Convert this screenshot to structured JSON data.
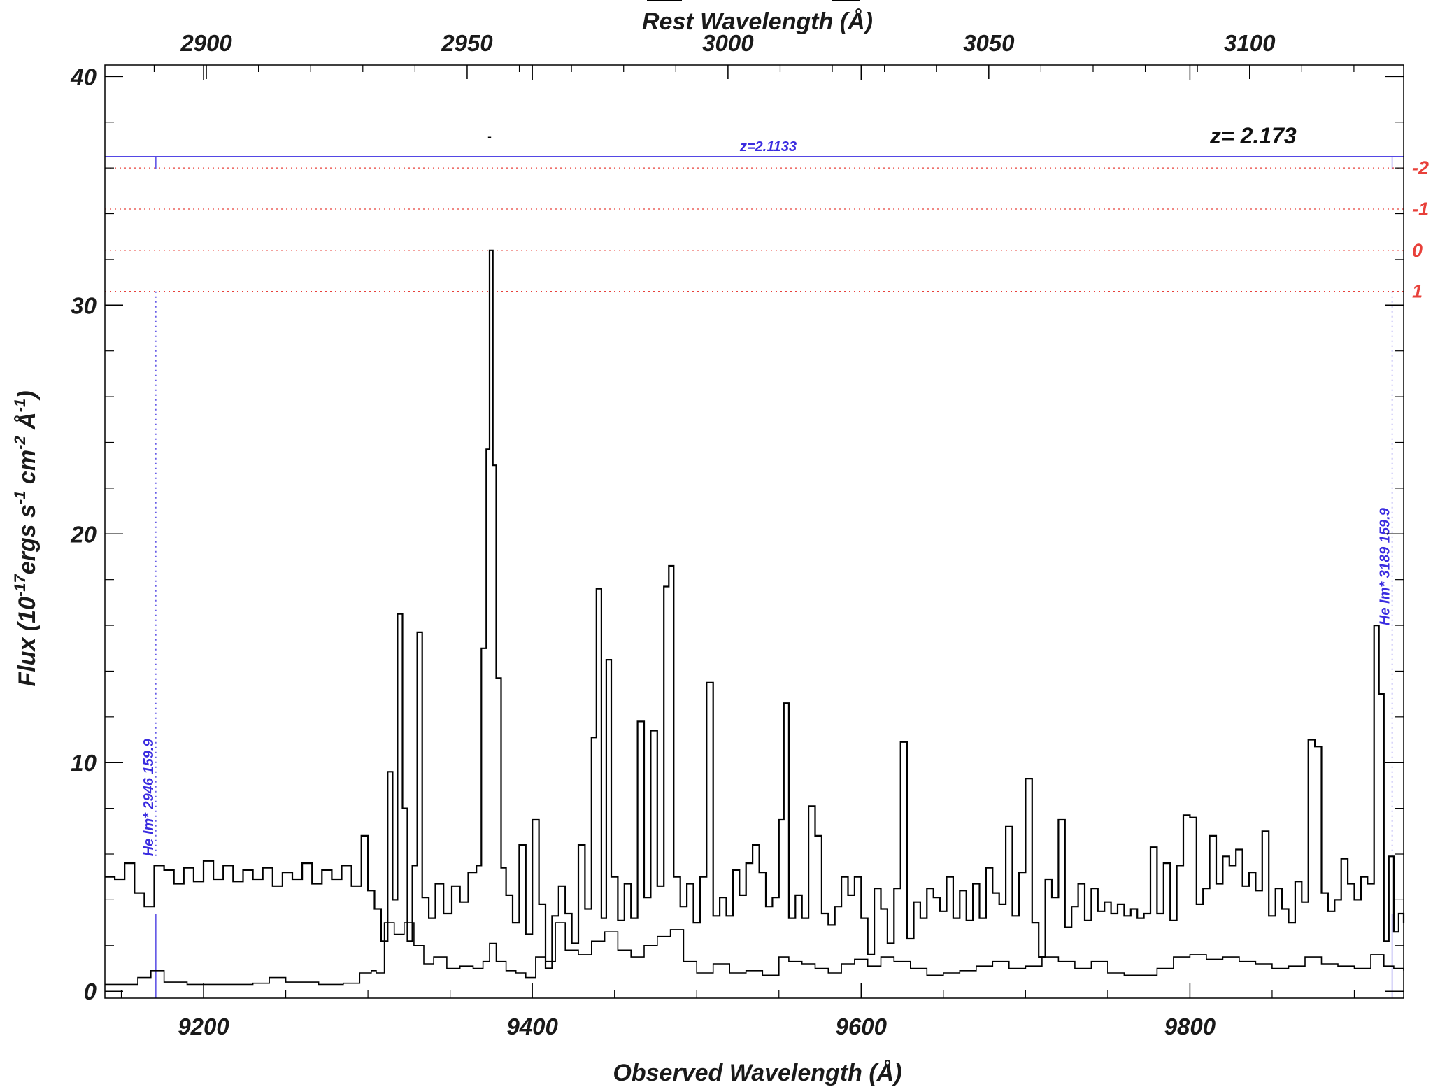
{
  "chart_data": {
    "type": "line",
    "title": "",
    "xlabel": "Observed Wavelength (Å)",
    "xlabel_top": "Rest Wavelength (Å)",
    "ylabel": "Flux (10^-17 ergs s^-1 cm^-2 Å^-1)",
    "ylabel_parts": {
      "pre": "Flux (10",
      "exp1": "-17",
      "mid1": "ergs s",
      "exp2": "-1",
      "mid2": " cm",
      "exp3": "-2",
      "mid3": " Å",
      "exp4": "-1",
      "post": ")"
    },
    "xlim": [
      9140,
      9930
    ],
    "ylim": [
      -0.3,
      40.5
    ],
    "x_ticks": [
      9200,
      9400,
      9600,
      9800
    ],
    "x_ticks_labels": [
      "9200",
      "9400",
      "9600",
      "9800"
    ],
    "top_ticks": [
      2900,
      2950,
      3000,
      3050,
      3100
    ],
    "top_ticks_labels": [
      "2900",
      "2950",
      "3000",
      "3050",
      "3100"
    ],
    "rest_redshift": 2.173,
    "y_ticks": [
      0,
      10,
      20,
      30,
      40
    ],
    "y_ticks_labels": [
      "0",
      "10",
      "20",
      "30",
      "40"
    ],
    "grid": false,
    "series": [
      {
        "role": "flux",
        "color": "#000000",
        "points": [
          [
            9140,
            5.0
          ],
          [
            9146,
            4.9
          ],
          [
            9152,
            5.6
          ],
          [
            9158,
            4.3
          ],
          [
            9164,
            3.7
          ],
          [
            9170,
            5.5
          ],
          [
            9176,
            5.3
          ],
          [
            9182,
            4.7
          ],
          [
            9188,
            5.4
          ],
          [
            9194,
            4.8
          ],
          [
            9200,
            5.7
          ],
          [
            9206,
            4.9
          ],
          [
            9212,
            5.5
          ],
          [
            9218,
            4.8
          ],
          [
            9224,
            5.3
          ],
          [
            9230,
            4.9
          ],
          [
            9236,
            5.4
          ],
          [
            9242,
            4.6
          ],
          [
            9248,
            5.2
          ],
          [
            9254,
            4.9
          ],
          [
            9260,
            5.6
          ],
          [
            9266,
            4.7
          ],
          [
            9272,
            5.3
          ],
          [
            9278,
            4.9
          ],
          [
            9284,
            5.5
          ],
          [
            9290,
            4.6
          ],
          [
            9296,
            6.8
          ],
          [
            9300,
            4.4
          ],
          [
            9304,
            3.6
          ],
          [
            9308,
            2.2
          ],
          [
            9312,
            9.6
          ],
          [
            9315,
            4.0
          ],
          [
            9318,
            16.5
          ],
          [
            9321,
            8.0
          ],
          [
            9324,
            2.2
          ],
          [
            9327,
            5.5
          ],
          [
            9330,
            15.7
          ],
          [
            9333,
            4.1
          ],
          [
            9337,
            3.2
          ],
          [
            9341,
            4.7
          ],
          [
            9346,
            3.4
          ],
          [
            9351,
            4.6
          ],
          [
            9356,
            3.9
          ],
          [
            9361,
            5.2
          ],
          [
            9366,
            5.5
          ],
          [
            9369,
            15.0
          ],
          [
            9372,
            23.7
          ],
          [
            9374,
            32.4
          ],
          [
            9376,
            23.0
          ],
          [
            9378,
            13.7
          ],
          [
            9381,
            5.4
          ],
          [
            9384,
            4.2
          ],
          [
            9388,
            3.0
          ],
          [
            9392,
            6.4
          ],
          [
            9396,
            2.5
          ],
          [
            9400,
            7.5
          ],
          [
            9404,
            3.8
          ],
          [
            9408,
            1.0
          ],
          [
            9412,
            3.3
          ],
          [
            9416,
            4.6
          ],
          [
            9420,
            3.4
          ],
          [
            9424,
            2.1
          ],
          [
            9428,
            6.4
          ],
          [
            9432,
            3.6
          ],
          [
            9436,
            11.1
          ],
          [
            9439,
            17.6
          ],
          [
            9442,
            3.2
          ],
          [
            9445,
            14.5
          ],
          [
            9448,
            5.0
          ],
          [
            9452,
            3.1
          ],
          [
            9456,
            4.7
          ],
          [
            9460,
            3.2
          ],
          [
            9464,
            11.8
          ],
          [
            9468,
            4.1
          ],
          [
            9472,
            11.4
          ],
          [
            9476,
            4.6
          ],
          [
            9480,
            17.7
          ],
          [
            9483,
            18.6
          ],
          [
            9486,
            5.0
          ],
          [
            9490,
            3.7
          ],
          [
            9494,
            4.7
          ],
          [
            9498,
            3.0
          ],
          [
            9502,
            5.0
          ],
          [
            9506,
            13.5
          ],
          [
            9510,
            3.3
          ],
          [
            9514,
            4.1
          ],
          [
            9518,
            3.3
          ],
          [
            9522,
            5.3
          ],
          [
            9526,
            4.2
          ],
          [
            9530,
            5.6
          ],
          [
            9534,
            6.4
          ],
          [
            9538,
            5.2
          ],
          [
            9542,
            3.7
          ],
          [
            9546,
            4.1
          ],
          [
            9550,
            7.5
          ],
          [
            9553,
            12.6
          ],
          [
            9556,
            3.2
          ],
          [
            9560,
            4.2
          ],
          [
            9564,
            3.2
          ],
          [
            9568,
            8.1
          ],
          [
            9572,
            6.8
          ],
          [
            9576,
            3.4
          ],
          [
            9580,
            2.9
          ],
          [
            9584,
            3.7
          ],
          [
            9588,
            5.0
          ],
          [
            9592,
            4.2
          ],
          [
            9596,
            5.0
          ],
          [
            9600,
            3.2
          ],
          [
            9604,
            1.6
          ],
          [
            9608,
            4.5
          ],
          [
            9612,
            3.6
          ],
          [
            9616,
            2.1
          ],
          [
            9620,
            4.5
          ],
          [
            9624,
            10.9
          ],
          [
            9628,
            2.3
          ],
          [
            9632,
            3.9
          ],
          [
            9636,
            3.2
          ],
          [
            9640,
            4.5
          ],
          [
            9644,
            4.1
          ],
          [
            9648,
            3.5
          ],
          [
            9652,
            5.0
          ],
          [
            9656,
            3.2
          ],
          [
            9660,
            4.4
          ],
          [
            9664,
            3.1
          ],
          [
            9668,
            4.7
          ],
          [
            9672,
            3.2
          ],
          [
            9676,
            5.4
          ],
          [
            9680,
            4.3
          ],
          [
            9684,
            3.8
          ],
          [
            9688,
            7.2
          ],
          [
            9692,
            3.3
          ],
          [
            9696,
            5.2
          ],
          [
            9700,
            9.3
          ],
          [
            9704,
            3.0
          ],
          [
            9708,
            1.5
          ],
          [
            9712,
            4.9
          ],
          [
            9716,
            4.1
          ],
          [
            9720,
            7.5
          ],
          [
            9724,
            2.8
          ],
          [
            9728,
            3.7
          ],
          [
            9732,
            4.7
          ],
          [
            9736,
            3.1
          ],
          [
            9740,
            4.5
          ],
          [
            9744,
            3.5
          ],
          [
            9748,
            3.9
          ],
          [
            9752,
            3.4
          ],
          [
            9756,
            3.8
          ],
          [
            9760,
            3.3
          ],
          [
            9764,
            3.6
          ],
          [
            9768,
            3.2
          ],
          [
            9772,
            3.4
          ],
          [
            9776,
            6.3
          ],
          [
            9780,
            3.4
          ],
          [
            9784,
            5.6
          ],
          [
            9788,
            3.1
          ],
          [
            9792,
            5.5
          ],
          [
            9796,
            7.7
          ],
          [
            9800,
            7.6
          ],
          [
            9804,
            3.8
          ],
          [
            9808,
            4.5
          ],
          [
            9812,
            6.8
          ],
          [
            9816,
            4.7
          ],
          [
            9820,
            5.9
          ],
          [
            9824,
            5.5
          ],
          [
            9828,
            6.2
          ],
          [
            9832,
            4.6
          ],
          [
            9836,
            5.2
          ],
          [
            9840,
            4.4
          ],
          [
            9844,
            7.0
          ],
          [
            9848,
            3.3
          ],
          [
            9852,
            4.5
          ],
          [
            9856,
            3.6
          ],
          [
            9860,
            3.0
          ],
          [
            9864,
            4.8
          ],
          [
            9868,
            3.9
          ],
          [
            9872,
            11.0
          ],
          [
            9876,
            10.7
          ],
          [
            9880,
            4.3
          ],
          [
            9884,
            3.5
          ],
          [
            9888,
            4.0
          ],
          [
            9892,
            5.8
          ],
          [
            9896,
            4.7
          ],
          [
            9900,
            4.0
          ],
          [
            9904,
            5.0
          ],
          [
            9908,
            4.7
          ],
          [
            9912,
            16.0
          ],
          [
            9915,
            13.0
          ],
          [
            9918,
            2.2
          ],
          [
            9921,
            5.9
          ],
          [
            9924,
            2.6
          ],
          [
            9927,
            3.4
          ],
          [
            9930,
            3.0
          ]
        ]
      },
      {
        "role": "error",
        "color": "#000000",
        "points": [
          [
            9140,
            0.3
          ],
          [
            9150,
            0.3
          ],
          [
            9160,
            0.6
          ],
          [
            9168,
            0.9
          ],
          [
            9176,
            0.4
          ],
          [
            9190,
            0.3
          ],
          [
            9210,
            0.3
          ],
          [
            9230,
            0.35
          ],
          [
            9240,
            0.6
          ],
          [
            9250,
            0.4
          ],
          [
            9270,
            0.3
          ],
          [
            9285,
            0.35
          ],
          [
            9295,
            0.8
          ],
          [
            9302,
            0.9
          ],
          [
            9305,
            0.8
          ],
          [
            9310,
            3.0
          ],
          [
            9316,
            2.5
          ],
          [
            9322,
            3.0
          ],
          [
            9328,
            2.0
          ],
          [
            9334,
            1.2
          ],
          [
            9340,
            1.5
          ],
          [
            9348,
            1.0
          ],
          [
            9356,
            1.1
          ],
          [
            9364,
            1.0
          ],
          [
            9370,
            1.3
          ],
          [
            9374,
            2.1
          ],
          [
            9378,
            1.3
          ],
          [
            9384,
            0.9
          ],
          [
            9390,
            0.8
          ],
          [
            9396,
            0.6
          ],
          [
            9402,
            1.5
          ],
          [
            9408,
            1.3
          ],
          [
            9414,
            3.0
          ],
          [
            9420,
            1.8
          ],
          [
            9428,
            1.6
          ],
          [
            9436,
            2.2
          ],
          [
            9444,
            2.6
          ],
          [
            9452,
            1.8
          ],
          [
            9460,
            1.5
          ],
          [
            9468,
            2.0
          ],
          [
            9476,
            2.4
          ],
          [
            9484,
            2.7
          ],
          [
            9492,
            1.3
          ],
          [
            9500,
            0.8
          ],
          [
            9510,
            1.2
          ],
          [
            9520,
            0.8
          ],
          [
            9530,
            0.9
          ],
          [
            9540,
            0.7
          ],
          [
            9550,
            1.5
          ],
          [
            9556,
            1.3
          ],
          [
            9564,
            1.2
          ],
          [
            9572,
            1.0
          ],
          [
            9580,
            0.8
          ],
          [
            9588,
            1.2
          ],
          [
            9596,
            1.4
          ],
          [
            9604,
            1.1
          ],
          [
            9612,
            1.5
          ],
          [
            9620,
            1.3
          ],
          [
            9630,
            1.0
          ],
          [
            9640,
            0.7
          ],
          [
            9650,
            0.8
          ],
          [
            9660,
            0.9
          ],
          [
            9670,
            1.1
          ],
          [
            9680,
            1.3
          ],
          [
            9690,
            1.0
          ],
          [
            9700,
            1.1
          ],
          [
            9710,
            1.5
          ],
          [
            9720,
            1.3
          ],
          [
            9730,
            1.0
          ],
          [
            9740,
            1.3
          ],
          [
            9750,
            0.8
          ],
          [
            9760,
            0.7
          ],
          [
            9770,
            0.7
          ],
          [
            9780,
            1.0
          ],
          [
            9790,
            1.5
          ],
          [
            9800,
            1.6
          ],
          [
            9810,
            1.4
          ],
          [
            9820,
            1.5
          ],
          [
            9830,
            1.3
          ],
          [
            9840,
            1.2
          ],
          [
            9850,
            1.0
          ],
          [
            9860,
            1.1
          ],
          [
            9870,
            1.5
          ],
          [
            9880,
            1.2
          ],
          [
            9890,
            1.1
          ],
          [
            9900,
            1.0
          ],
          [
            9910,
            1.6
          ],
          [
            9918,
            1.1
          ],
          [
            9924,
            1.0
          ],
          [
            9930,
            0.9
          ]
        ]
      }
    ],
    "sigma_levels": {
      "color": "#e8403a",
      "lines": [
        {
          "y": 36.0,
          "label": "-2"
        },
        {
          "y": 34.2,
          "label": "-1"
        },
        {
          "y": 32.4,
          "label": "0"
        },
        {
          "y": 30.6,
          "label": "1"
        }
      ]
    },
    "absorber": {
      "label": "z=2.1133",
      "z": 2.1133,
      "color": "#3b2de0",
      "bar_y": 36.5,
      "x_start": 9140,
      "x_end": 9930,
      "lines": [
        {
          "label": "He Im* 2946 159.9",
          "x": 9171
        },
        {
          "label": "He Im* 3189 159.9",
          "x": 9923
        }
      ]
    },
    "redshift_label": "z= 2.173",
    "annotations": [
      {
        "text": "z=2.1133",
        "color": "#3b2de0"
      },
      {
        "text": "z= 2.173",
        "color": "#111111"
      }
    ]
  }
}
